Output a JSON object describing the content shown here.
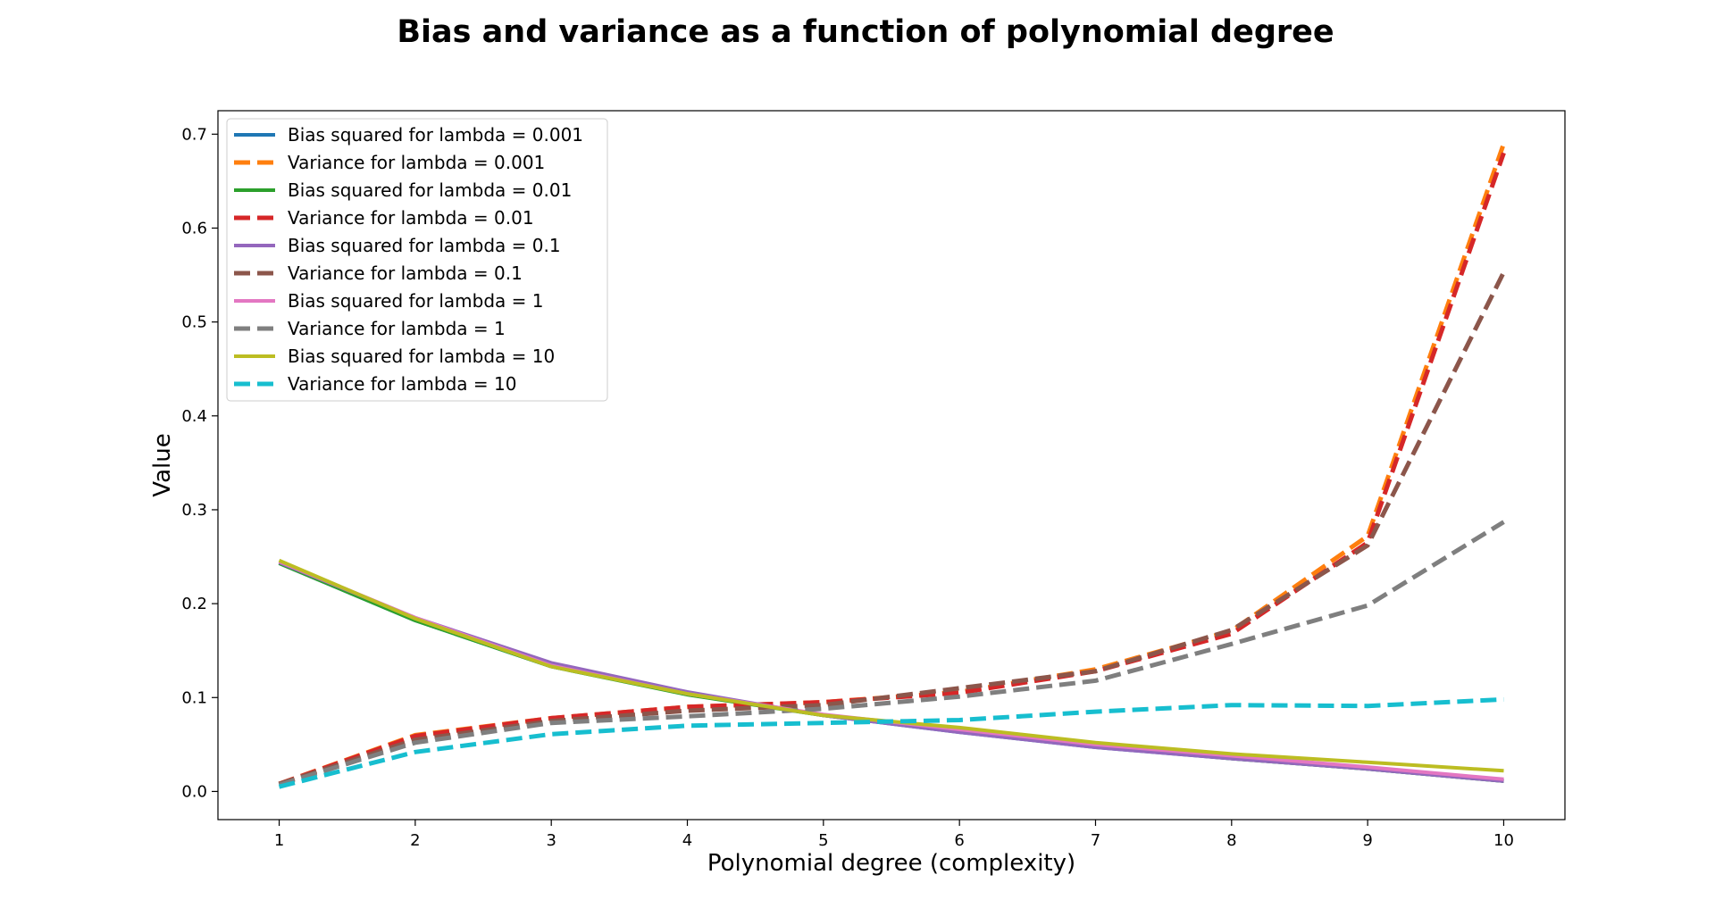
{
  "chart_data": {
    "type": "line",
    "title": "Bias and variance as a function of polynomial degree",
    "xlabel": "Polynomial degree (complexity)",
    "ylabel": "Value",
    "x": [
      1,
      2,
      3,
      4,
      5,
      6,
      7,
      8,
      9,
      10
    ],
    "xlim": [
      0.55,
      10.45
    ],
    "ylim": [
      -0.03,
      0.725
    ],
    "yticks": [
      0.0,
      0.1,
      0.2,
      0.3,
      0.4,
      0.5,
      0.6,
      0.7
    ],
    "ytick_labels": [
      "0.0",
      "0.1",
      "0.2",
      "0.3",
      "0.4",
      "0.5",
      "0.6",
      "0.7"
    ],
    "xtick_labels": [
      "1",
      "2",
      "3",
      "4",
      "5",
      "6",
      "7",
      "8",
      "9",
      "10"
    ],
    "grid": false,
    "legend_position": "top-left",
    "series": [
      {
        "name": "Bias squared for lambda = 0.001",
        "style": "solid",
        "color": "#1f77b4",
        "values": [
          0.243,
          0.182,
          0.133,
          0.104,
          0.081,
          0.063,
          0.047,
          0.035,
          0.024,
          0.011
        ]
      },
      {
        "name": "Variance for lambda = 0.001",
        "style": "dashed",
        "color": "#ff7f0e",
        "values": [
          0.008,
          0.06,
          0.078,
          0.09,
          0.095,
          0.106,
          0.13,
          0.171,
          0.272,
          0.69
        ]
      },
      {
        "name": "Bias squared for lambda = 0.01",
        "style": "solid",
        "color": "#2ca02c",
        "values": [
          0.243,
          0.182,
          0.133,
          0.103,
          0.081,
          0.064,
          0.048,
          0.035,
          0.024,
          0.011
        ]
      },
      {
        "name": "Variance for lambda = 0.01",
        "style": "dashed",
        "color": "#d62728",
        "values": [
          0.008,
          0.059,
          0.078,
          0.09,
          0.095,
          0.105,
          0.128,
          0.168,
          0.265,
          0.68
        ]
      },
      {
        "name": "Bias squared for lambda = 0.1",
        "style": "solid",
        "color": "#9467bd",
        "values": [
          0.244,
          0.185,
          0.137,
          0.106,
          0.081,
          0.063,
          0.047,
          0.035,
          0.024,
          0.011
        ]
      },
      {
        "name": "Variance for lambda = 0.1",
        "style": "dashed",
        "color": "#8c564b",
        "values": [
          0.008,
          0.055,
          0.075,
          0.086,
          0.092,
          0.11,
          0.128,
          0.172,
          0.262,
          0.553
        ]
      },
      {
        "name": "Bias squared for lambda = 1",
        "style": "solid",
        "color": "#e377c2",
        "values": [
          0.245,
          0.185,
          0.134,
          0.104,
          0.082,
          0.066,
          0.05,
          0.038,
          0.026,
          0.013
        ]
      },
      {
        "name": "Variance for lambda = 1",
        "style": "dashed",
        "color": "#7f7f7f",
        "values": [
          0.007,
          0.052,
          0.073,
          0.08,
          0.088,
          0.101,
          0.118,
          0.157,
          0.198,
          0.287
        ]
      },
      {
        "name": "Bias squared for lambda = 10",
        "style": "solid",
        "color": "#bcbd22",
        "values": [
          0.246,
          0.184,
          0.133,
          0.104,
          0.081,
          0.068,
          0.052,
          0.04,
          0.031,
          0.022
        ]
      },
      {
        "name": "Variance for lambda = 10",
        "style": "dashed",
        "color": "#17becf",
        "values": [
          0.005,
          0.042,
          0.061,
          0.07,
          0.073,
          0.076,
          0.085,
          0.092,
          0.091,
          0.098
        ]
      }
    ]
  }
}
